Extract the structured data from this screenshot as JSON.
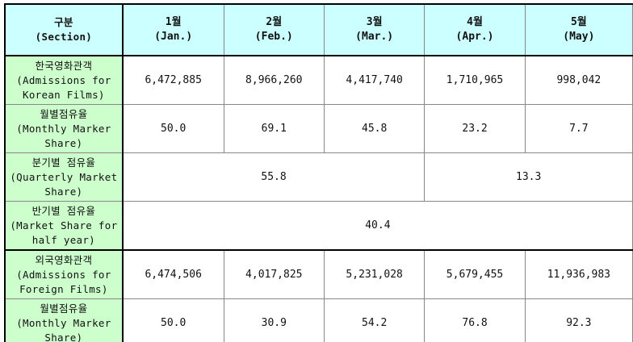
{
  "table": {
    "header": [
      [
        "구분",
        "(Section)"
      ],
      [
        "1월",
        "(Jan.)"
      ],
      [
        "2월",
        "(Feb.)"
      ],
      [
        "3월",
        "(Mar.)"
      ],
      [
        "4월",
        "(Apr.)"
      ],
      [
        "5월",
        "(May)"
      ]
    ],
    "rows": [
      {
        "label": [
          "한국영화관객",
          "(Admissions for",
          "Korean Films)"
        ],
        "cells": [
          "6,472,885",
          "8,966,260",
          "4,417,740",
          "1,710,965",
          "998,042"
        ]
      },
      {
        "label": [
          "월별점유율",
          "(Monthly Marker",
          "Share)"
        ],
        "cells": [
          "50.0",
          "69.1",
          "45.8",
          "23.2",
          "7.7"
        ]
      },
      {
        "label": [
          "분기별 점유율",
          "(Quarterly Market",
          "Share)"
        ],
        "cells": [
          "55.8",
          "13.3"
        ]
      },
      {
        "label": [
          "반기별 점유율",
          "(Market Share for",
          "half year)"
        ],
        "cells": [
          "40.4"
        ]
      },
      {
        "label": [
          "외국영화관객",
          "(Admissions for",
          "Foreign Films)"
        ],
        "cells": [
          "6,474,506",
          "4,017,825",
          "5,231,028",
          "5,679,455",
          "11,936,983"
        ]
      },
      {
        "label": [
          "월별점유율",
          "(Monthly Marker",
          "Share)"
        ],
        "cells": [
          "50.0",
          "30.9",
          "54.2",
          "76.8",
          "92.3"
        ]
      }
    ]
  }
}
